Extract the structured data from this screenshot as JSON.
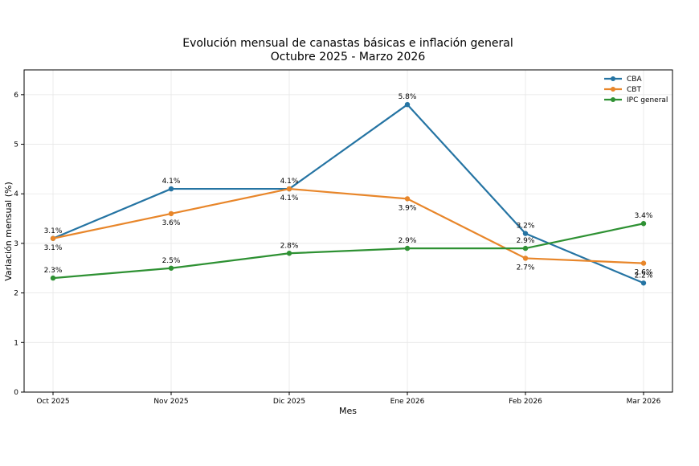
{
  "chart_data": {
    "type": "line",
    "title": "Evolución mensual de canastas básicas e inflación general",
    "subtitle": "Octubre 2025 - Marzo 2026",
    "xlabel": "Mes",
    "ylabel": "Variación mensual (%)",
    "categories": [
      "Oct 2025",
      "Nov 2025",
      "Dic 2025",
      "Ene 2026",
      "Feb 2026",
      "Mar 2026"
    ],
    "ylim": [
      0,
      6.5
    ],
    "yticks": [
      0,
      1,
      2,
      3,
      4,
      5,
      6
    ],
    "grid": true,
    "legend_position": "top-right",
    "series": [
      {
        "name": "CBA",
        "color": "#2574a3",
        "values": [
          3.1,
          4.1,
          4.1,
          5.8,
          3.2,
          2.2
        ],
        "labels": [
          "3.1%",
          "4.1%",
          "4.1%",
          "5.8%",
          "3.2%",
          "2.2%"
        ],
        "label_side": "above"
      },
      {
        "name": "CBT",
        "color": "#e8862a",
        "values": [
          3.1,
          3.6,
          4.1,
          3.9,
          2.7,
          2.6
        ],
        "labels": [
          "3.1%",
          "3.6%",
          "4.1%",
          "3.9%",
          "2.7%",
          "2.6%"
        ],
        "label_side": "below"
      },
      {
        "name": "IPC general",
        "color": "#2e9133",
        "values": [
          2.3,
          2.5,
          2.8,
          2.9,
          2.9,
          3.4
        ],
        "labels": [
          "2.3%",
          "2.5%",
          "2.8%",
          "2.9%",
          "2.9%",
          "3.4%"
        ],
        "label_side": "above"
      }
    ]
  }
}
